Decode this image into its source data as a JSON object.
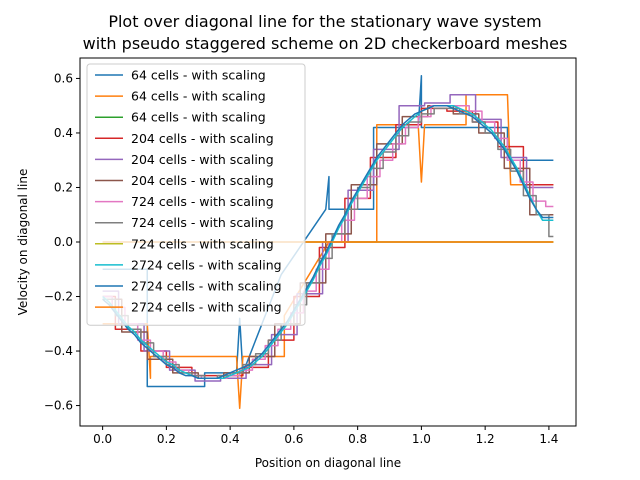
{
  "chart_data": {
    "type": "line",
    "title_line1": "Plot over diagonal line for the stationary wave system",
    "title_line2": "with pseudo staggered scheme on 2D checkerboard meshes",
    "xlabel": "Position on diagonal line",
    "ylabel": "Velocity on diagonal line",
    "xlim": [
      -0.071,
      1.485
    ],
    "ylim": [
      -0.675,
      0.675
    ],
    "xticks": [
      0.0,
      0.2,
      0.4,
      0.6,
      0.8,
      1.0,
      1.2,
      1.4
    ],
    "xtick_labels": [
      "0.0",
      "0.2",
      "0.4",
      "0.6",
      "0.8",
      "1.0",
      "1.2",
      "1.4"
    ],
    "yticks": [
      -0.6,
      -0.4,
      -0.2,
      0.0,
      0.2,
      0.4,
      0.6
    ],
    "ytick_labels": [
      "−0.6",
      "−0.4",
      "−0.2",
      "0.0",
      "0.2",
      "0.4",
      "0.6"
    ],
    "legend_position": "upper-left",
    "series": [
      {
        "name": "64 cells - with scaling",
        "color": "#1f77b4",
        "x": [
          0.0,
          0.14,
          0.14,
          0.32,
          0.32,
          0.42,
          0.43,
          0.44,
          0.44,
          0.56,
          0.56,
          0.7,
          0.71,
          0.71,
          0.72,
          0.72,
          0.85,
          0.85,
          0.99,
          1.0,
          1.0,
          1.01,
          1.01,
          1.27,
          1.27,
          1.414
        ],
        "y": [
          -0.1,
          -0.1,
          -0.53,
          -0.53,
          -0.48,
          -0.48,
          -0.28,
          -0.48,
          -0.48,
          -0.12,
          -0.12,
          0.12,
          0.24,
          0.12,
          0.12,
          0.12,
          0.12,
          0.42,
          0.42,
          0.61,
          0.42,
          0.42,
          0.42,
          0.42,
          0.3,
          0.3
        ]
      },
      {
        "name": "64 cells - with scaling",
        "color": "#ff7f0e",
        "x": [
          0.0,
          0.14,
          0.15,
          0.15,
          0.28,
          0.28,
          0.42,
          0.43,
          0.44,
          0.44,
          0.57,
          0.57,
          0.71,
          0.72,
          0.72,
          0.86,
          0.86,
          0.99,
          1.0,
          1.01,
          1.01,
          1.14,
          1.14,
          1.27,
          1.28,
          1.28,
          1.414
        ],
        "y": [
          -0.3,
          -0.3,
          -0.5,
          -0.42,
          -0.42,
          -0.42,
          -0.42,
          -0.61,
          -0.42,
          -0.42,
          -0.42,
          -0.27,
          0.0,
          0.0,
          0.0,
          0.0,
          0.43,
          0.43,
          0.22,
          0.43,
          0.43,
          0.43,
          0.54,
          0.54,
          0.21,
          0.21,
          0.21
        ]
      },
      {
        "name": "64 cells - with scaling",
        "color": "#2ca02c",
        "x": [
          0.0,
          0.7,
          0.72,
          1.414
        ],
        "y": [
          0.0,
          0.0,
          0.0,
          0.0
        ]
      },
      {
        "name": "204 cells - with scaling",
        "color": "#d62728",
        "x": [
          0.0,
          0.04,
          0.04,
          0.12,
          0.12,
          0.2,
          0.2,
          0.28,
          0.28,
          0.36,
          0.36,
          0.44,
          0.44,
          0.52,
          0.52,
          0.6,
          0.6,
          0.68,
          0.68,
          0.76,
          0.76,
          0.84,
          0.84,
          0.92,
          0.92,
          1.0,
          1.0,
          1.08,
          1.08,
          1.16,
          1.16,
          1.24,
          1.24,
          1.32,
          1.32,
          1.414
        ],
        "y": [
          -0.2,
          -0.2,
          -0.32,
          -0.32,
          -0.4,
          -0.4,
          -0.46,
          -0.46,
          -0.49,
          -0.49,
          -0.49,
          -0.49,
          -0.46,
          -0.46,
          -0.36,
          -0.36,
          -0.2,
          -0.2,
          -0.02,
          -0.02,
          0.16,
          0.16,
          0.31,
          0.31,
          0.43,
          0.43,
          0.49,
          0.49,
          0.48,
          0.48,
          0.44,
          0.44,
          0.35,
          0.35,
          0.21,
          0.21
        ]
      },
      {
        "name": "204 cells - with scaling",
        "color": "#9467bd",
        "x": [
          0.0,
          0.05,
          0.05,
          0.13,
          0.13,
          0.21,
          0.21,
          0.29,
          0.29,
          0.37,
          0.37,
          0.45,
          0.45,
          0.53,
          0.53,
          0.61,
          0.61,
          0.69,
          0.69,
          0.77,
          0.77,
          0.85,
          0.85,
          0.93,
          0.93,
          1.01,
          1.01,
          1.09,
          1.09,
          1.17,
          1.17,
          1.25,
          1.25,
          1.33,
          1.33,
          1.414
        ],
        "y": [
          -0.18,
          -0.18,
          -0.3,
          -0.3,
          -0.4,
          -0.4,
          -0.47,
          -0.47,
          -0.51,
          -0.51,
          -0.5,
          -0.5,
          -0.45,
          -0.45,
          -0.34,
          -0.34,
          -0.19,
          -0.19,
          0.0,
          0.0,
          0.19,
          0.19,
          0.34,
          0.34,
          0.5,
          0.5,
          0.51,
          0.51,
          0.54,
          0.54,
          0.45,
          0.45,
          0.31,
          0.31,
          0.2,
          0.2
        ]
      },
      {
        "name": "204 cells - with scaling",
        "color": "#8c564b",
        "x": [
          0.0,
          0.06,
          0.06,
          0.14,
          0.14,
          0.22,
          0.22,
          0.3,
          0.3,
          0.38,
          0.38,
          0.46,
          0.46,
          0.54,
          0.54,
          0.62,
          0.62,
          0.7,
          0.7,
          0.78,
          0.78,
          0.86,
          0.86,
          0.94,
          0.94,
          1.02,
          1.02,
          1.1,
          1.1,
          1.18,
          1.18,
          1.26,
          1.26,
          1.34,
          1.34,
          1.414
        ],
        "y": [
          -0.21,
          -0.21,
          -0.33,
          -0.33,
          -0.43,
          -0.43,
          -0.48,
          -0.48,
          -0.5,
          -0.5,
          -0.48,
          -0.48,
          -0.42,
          -0.42,
          -0.3,
          -0.3,
          -0.15,
          -0.15,
          0.03,
          0.03,
          0.21,
          0.21,
          0.36,
          0.36,
          0.46,
          0.46,
          0.5,
          0.5,
          0.47,
          0.47,
          0.4,
          0.4,
          0.27,
          0.27,
          0.1,
          0.1
        ]
      },
      {
        "name": "724 cells - with scaling",
        "color": "#e377c2",
        "x": [
          0.0,
          0.03,
          0.03,
          0.07,
          0.07,
          0.11,
          0.11,
          0.15,
          0.15,
          0.19,
          0.19,
          0.23,
          0.23,
          0.27,
          0.27,
          0.31,
          0.31,
          0.35,
          0.35,
          0.39,
          0.39,
          0.43,
          0.43,
          0.47,
          0.47,
          0.51,
          0.51,
          0.55,
          0.55,
          0.59,
          0.59,
          0.63,
          0.63,
          0.67,
          0.67,
          0.71,
          0.71,
          0.75,
          0.75,
          0.79,
          0.79,
          0.83,
          0.83,
          0.87,
          0.87,
          0.91,
          0.91,
          0.95,
          0.95,
          0.99,
          0.99,
          1.03,
          1.03,
          1.07,
          1.07,
          1.11,
          1.11,
          1.15,
          1.15,
          1.19,
          1.19,
          1.23,
          1.23,
          1.27,
          1.27,
          1.31,
          1.31,
          1.35,
          1.35,
          1.39,
          1.39,
          1.414
        ],
        "y": [
          -0.2,
          -0.2,
          -0.24,
          -0.24,
          -0.3,
          -0.3,
          -0.36,
          -0.36,
          -0.4,
          -0.4,
          -0.44,
          -0.44,
          -0.47,
          -0.47,
          -0.49,
          -0.49,
          -0.5,
          -0.5,
          -0.5,
          -0.5,
          -0.49,
          -0.49,
          -0.47,
          -0.47,
          -0.43,
          -0.43,
          -0.38,
          -0.38,
          -0.32,
          -0.32,
          -0.26,
          -0.26,
          -0.18,
          -0.18,
          -0.1,
          -0.1,
          0.0,
          0.0,
          0.08,
          0.08,
          0.16,
          0.16,
          0.24,
          0.24,
          0.3,
          0.3,
          0.36,
          0.36,
          0.42,
          0.42,
          0.46,
          0.46,
          0.5,
          0.5,
          0.5,
          0.5,
          0.5,
          0.5,
          0.48,
          0.48,
          0.44,
          0.44,
          0.38,
          0.38,
          0.3,
          0.3,
          0.22,
          0.22,
          0.15,
          0.15,
          0.13,
          0.13
        ]
      },
      {
        "name": "724 cells - with scaling",
        "color": "#7f7f7f",
        "x": [
          0.0,
          0.04,
          0.04,
          0.08,
          0.08,
          0.12,
          0.12,
          0.16,
          0.16,
          0.2,
          0.2,
          0.24,
          0.24,
          0.28,
          0.28,
          0.32,
          0.32,
          0.36,
          0.36,
          0.4,
          0.4,
          0.44,
          0.44,
          0.48,
          0.48,
          0.52,
          0.52,
          0.56,
          0.56,
          0.6,
          0.6,
          0.64,
          0.64,
          0.68,
          0.68,
          0.72,
          0.72,
          0.76,
          0.76,
          0.8,
          0.8,
          0.84,
          0.84,
          0.88,
          0.88,
          0.92,
          0.92,
          0.96,
          0.96,
          1.0,
          1.0,
          1.04,
          1.04,
          1.08,
          1.08,
          1.12,
          1.12,
          1.16,
          1.16,
          1.2,
          1.2,
          1.24,
          1.24,
          1.28,
          1.28,
          1.32,
          1.32,
          1.36,
          1.36,
          1.4,
          1.4,
          1.414
        ],
        "y": [
          -0.21,
          -0.21,
          -0.27,
          -0.27,
          -0.32,
          -0.32,
          -0.37,
          -0.37,
          -0.42,
          -0.42,
          -0.45,
          -0.45,
          -0.48,
          -0.48,
          -0.49,
          -0.49,
          -0.5,
          -0.5,
          -0.49,
          -0.49,
          -0.48,
          -0.48,
          -0.45,
          -0.45,
          -0.41,
          -0.41,
          -0.36,
          -0.36,
          -0.3,
          -0.3,
          -0.23,
          -0.23,
          -0.15,
          -0.15,
          -0.06,
          -0.06,
          0.03,
          0.03,
          0.12,
          0.12,
          0.2,
          0.2,
          0.27,
          0.27,
          0.33,
          0.33,
          0.39,
          0.39,
          0.44,
          0.44,
          0.47,
          0.47,
          0.49,
          0.49,
          0.49,
          0.49,
          0.47,
          0.47,
          0.44,
          0.44,
          0.4,
          0.4,
          0.34,
          0.34,
          0.26,
          0.26,
          0.17,
          0.17,
          0.1,
          0.1,
          0.02,
          0.02
        ]
      },
      {
        "name": "724 cells - with scaling",
        "color": "#bcbd22",
        "x": [
          0.0,
          0.7,
          0.72,
          1.414
        ],
        "y": [
          0.0,
          0.0,
          0.0,
          0.0
        ]
      },
      {
        "name": "2724 cells - with scaling",
        "color": "#17becf",
        "x": [
          0.0,
          0.02,
          0.04,
          0.06,
          0.08,
          0.1,
          0.12,
          0.14,
          0.16,
          0.18,
          0.2,
          0.22,
          0.24,
          0.26,
          0.28,
          0.3,
          0.32,
          0.34,
          0.36,
          0.38,
          0.4,
          0.42,
          0.44,
          0.46,
          0.48,
          0.5,
          0.52,
          0.54,
          0.56,
          0.58,
          0.6,
          0.62,
          0.64,
          0.66,
          0.68,
          0.7,
          0.72,
          0.74,
          0.76,
          0.78,
          0.8,
          0.82,
          0.84,
          0.86,
          0.88,
          0.9,
          0.92,
          0.94,
          0.96,
          0.98,
          1.0,
          1.02,
          1.04,
          1.06,
          1.08,
          1.1,
          1.12,
          1.14,
          1.16,
          1.18,
          1.2,
          1.22,
          1.24,
          1.26,
          1.28,
          1.3,
          1.32,
          1.34,
          1.36,
          1.38,
          1.4,
          1.414
        ],
        "y": [
          -0.2,
          -0.22,
          -0.25,
          -0.28,
          -0.31,
          -0.33,
          -0.36,
          -0.38,
          -0.4,
          -0.42,
          -0.44,
          -0.45,
          -0.47,
          -0.48,
          -0.49,
          -0.5,
          -0.5,
          -0.5,
          -0.5,
          -0.5,
          -0.49,
          -0.48,
          -0.47,
          -0.46,
          -0.44,
          -0.42,
          -0.39,
          -0.36,
          -0.33,
          -0.3,
          -0.26,
          -0.22,
          -0.18,
          -0.14,
          -0.09,
          -0.05,
          0.0,
          0.05,
          0.09,
          0.14,
          0.18,
          0.22,
          0.26,
          0.3,
          0.33,
          0.36,
          0.39,
          0.42,
          0.44,
          0.46,
          0.48,
          0.49,
          0.5,
          0.5,
          0.5,
          0.5,
          0.49,
          0.48,
          0.47,
          0.45,
          0.43,
          0.41,
          0.38,
          0.35,
          0.31,
          0.27,
          0.22,
          0.17,
          0.12,
          0.08,
          0.08,
          0.08
        ]
      },
      {
        "name": "2724 cells - with scaling",
        "color": "#1f77b4",
        "x": [
          0.0,
          0.02,
          0.04,
          0.06,
          0.08,
          0.1,
          0.12,
          0.14,
          0.16,
          0.18,
          0.2,
          0.22,
          0.24,
          0.26,
          0.28,
          0.3,
          0.32,
          0.34,
          0.36,
          0.38,
          0.4,
          0.42,
          0.44,
          0.46,
          0.48,
          0.5,
          0.52,
          0.54,
          0.56,
          0.58,
          0.6,
          0.62,
          0.64,
          0.66,
          0.68,
          0.7,
          0.72,
          0.74,
          0.76,
          0.78,
          0.8,
          0.82,
          0.84,
          0.86,
          0.88,
          0.9,
          0.92,
          0.94,
          0.96,
          0.98,
          1.0,
          1.02,
          1.04,
          1.06,
          1.08,
          1.1,
          1.12,
          1.14,
          1.16,
          1.18,
          1.2,
          1.22,
          1.24,
          1.26,
          1.28,
          1.3,
          1.32,
          1.34,
          1.36,
          1.38,
          1.4,
          1.414
        ],
        "y": [
          -0.21,
          -0.23,
          -0.26,
          -0.29,
          -0.32,
          -0.34,
          -0.37,
          -0.39,
          -0.41,
          -0.43,
          -0.45,
          -0.46,
          -0.48,
          -0.49,
          -0.49,
          -0.5,
          -0.5,
          -0.5,
          -0.5,
          -0.49,
          -0.48,
          -0.47,
          -0.46,
          -0.45,
          -0.43,
          -0.41,
          -0.38,
          -0.35,
          -0.32,
          -0.29,
          -0.25,
          -0.21,
          -0.17,
          -0.13,
          -0.08,
          -0.04,
          0.01,
          0.06,
          0.1,
          0.15,
          0.19,
          0.23,
          0.27,
          0.31,
          0.34,
          0.37,
          0.4,
          0.43,
          0.45,
          0.47,
          0.48,
          0.49,
          0.5,
          0.5,
          0.5,
          0.49,
          0.48,
          0.47,
          0.46,
          0.44,
          0.42,
          0.4,
          0.37,
          0.34,
          0.3,
          0.26,
          0.21,
          0.16,
          0.12,
          0.09,
          0.09,
          0.09
        ]
      },
      {
        "name": "2724 cells - with scaling",
        "color": "#ff7f0e",
        "x": [
          0.0,
          0.7,
          0.72,
          1.414
        ],
        "y": [
          0.0,
          0.0,
          0.0,
          0.0
        ]
      }
    ]
  }
}
